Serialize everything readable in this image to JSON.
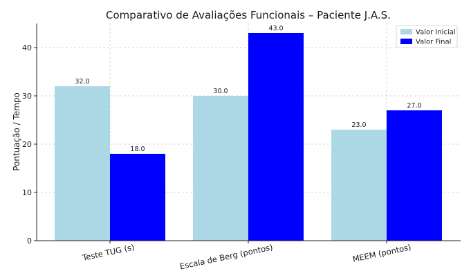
{
  "chart_data": {
    "type": "bar",
    "title": "Comparativo de Avaliações Funcionais – Paciente J.A.S.",
    "xlabel": "",
    "ylabel": "Pontuação / Tempo",
    "categories": [
      "Teste TUG (s)",
      "Escala de Berg (pontos)",
      "MEEM (pontos)"
    ],
    "series": [
      {
        "name": "Valor Inicial",
        "values": [
          32.0,
          30.0,
          23.0
        ],
        "color": "#add8e6"
      },
      {
        "name": "Valor Final",
        "values": [
          18.0,
          43.0,
          27.0
        ],
        "color": "#0000ff"
      }
    ],
    "ylim": [
      0,
      45
    ],
    "yticks": [
      0,
      10,
      20,
      30,
      40
    ],
    "grid": true,
    "legend_position": "top-right",
    "value_label_format": "one-decimal"
  }
}
